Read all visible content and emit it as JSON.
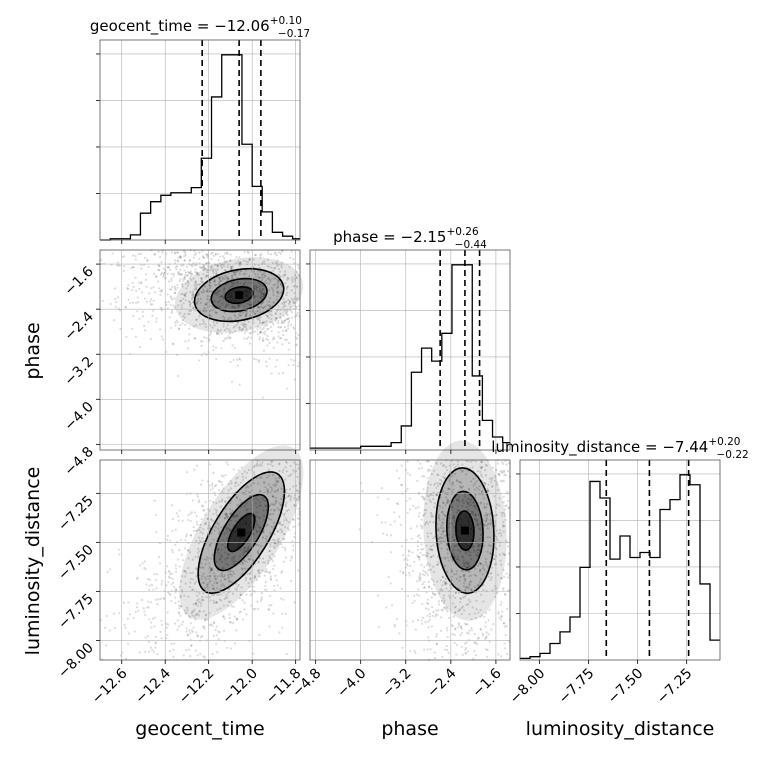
{
  "chart_data": {
    "type": "corner",
    "parameters": [
      "geocent_time",
      "phase",
      "luminosity_distance"
    ],
    "titles": [
      {
        "param": "geocent_time",
        "label": "geocent_time = −12.06",
        "sup": "+0.10",
        "sub": "−0.17"
      },
      {
        "param": "phase",
        "label": "phase = −2.15",
        "sup": "+0.26",
        "sub": "−0.44"
      },
      {
        "param": "luminosity_distance",
        "label": "luminosity_distance = −7.44",
        "sup": "+0.20",
        "sub": "−0.22"
      }
    ],
    "axis_labels": {
      "x": [
        "geocent_time",
        "phase",
        "luminosity_distance"
      ],
      "y": [
        "phase",
        "luminosity_distance"
      ]
    },
    "ranges": {
      "geocent_time": [
        -12.7,
        -11.78
      ],
      "phase": [
        -4.9,
        -1.35
      ],
      "luminosity_distance": [
        -8.1,
        -7.08
      ]
    },
    "ticks": {
      "geocent_time": [
        "−12.6",
        "−12.4",
        "−12.2",
        "−12.0",
        "−11.8"
      ],
      "phase": [
        "−4.8",
        "−4.0",
        "−3.2",
        "−2.4",
        "−1.6"
      ],
      "luminosity_distance": [
        "−8.00",
        "−7.75",
        "−7.50",
        "−7.25"
      ]
    },
    "tick_values": {
      "geocent_time": [
        -12.6,
        -12.4,
        -12.2,
        -12.0,
        -11.8
      ],
      "phase": [
        -4.8,
        -4.0,
        -3.2,
        -2.4,
        -1.6
      ],
      "luminosity_distance": [
        -8.0,
        -7.75,
        -7.5,
        -7.25
      ]
    },
    "quantiles": {
      "geocent_time": [
        -12.23,
        -12.06,
        -11.96
      ],
      "phase": [
        -2.59,
        -2.15,
        -1.89
      ],
      "luminosity_distance": [
        -7.66,
        -7.44,
        -7.24
      ]
    },
    "histograms": {
      "geocent_time": {
        "edges": [
          -12.7,
          -12.653,
          -12.607,
          -12.56,
          -12.514,
          -12.467,
          -12.42,
          -12.374,
          -12.327,
          -12.28,
          -12.234,
          -12.187,
          -12.14,
          -12.094,
          -12.047,
          -12.0,
          -11.954,
          -11.907,
          -11.86,
          -11.814,
          -11.78
        ],
        "counts": [
          0,
          1,
          1,
          4,
          21,
          30,
          35,
          37,
          37,
          41,
          64,
          112,
          145,
          145,
          75,
          42,
          22,
          6,
          3,
          1
        ]
      },
      "phase": {
        "edges": [
          -4.9,
          -4.72,
          -4.54,
          -4.36,
          -4.18,
          -4.0,
          -3.82,
          -3.64,
          -3.46,
          -3.28,
          -3.1,
          -2.92,
          -2.74,
          -2.56,
          -2.38,
          -2.2,
          -2.02,
          -1.84,
          -1.66,
          -1.48,
          -1.35
        ],
        "counts": [
          1,
          1,
          1,
          1,
          1,
          2,
          2,
          2,
          4,
          13,
          42,
          55,
          48,
          63,
          100,
          100,
          40,
          16,
          7,
          4
        ]
      },
      "luminosity_distance": {
        "edges": [
          -8.1,
          -8.049,
          -7.998,
          -7.947,
          -7.896,
          -7.845,
          -7.794,
          -7.743,
          -7.692,
          -7.641,
          -7.59,
          -7.539,
          -7.488,
          -7.437,
          -7.386,
          -7.335,
          -7.284,
          -7.233,
          -7.182,
          -7.131,
          -7.08
        ],
        "counts": [
          1,
          2,
          4,
          10,
          17,
          26,
          56,
          108,
          98,
          61,
          75,
          62,
          65,
          62,
          91,
          97,
          112,
          106,
          46,
          12
        ]
      }
    },
    "grid": true,
    "legend": "none"
  }
}
